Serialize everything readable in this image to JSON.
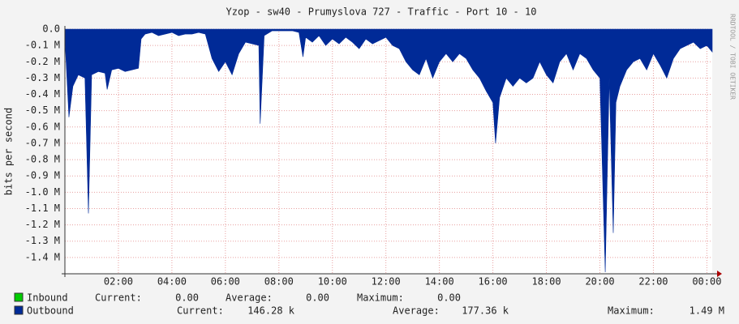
{
  "chart_data": {
    "type": "area",
    "title": "Yzop - sw40 - Prumyslova 727 - Traffic - Port 10 - 10",
    "y_label": "bits per second",
    "watermark": "RRDTOOL / TOBI OETIKER",
    "xlim": [
      0,
      24.2
    ],
    "xticks": [
      {
        "value": 2,
        "label": "02:00"
      },
      {
        "value": 4,
        "label": "04:00"
      },
      {
        "value": 6,
        "label": "06:00"
      },
      {
        "value": 8,
        "label": "08:00"
      },
      {
        "value": 10,
        "label": "10:00"
      },
      {
        "value": 12,
        "label": "12:00"
      },
      {
        "value": 14,
        "label": "14:00"
      },
      {
        "value": 16,
        "label": "16:00"
      },
      {
        "value": 18,
        "label": "18:00"
      },
      {
        "value": 20,
        "label": "20:00"
      },
      {
        "value": 22,
        "label": "22:00"
      },
      {
        "value": 24,
        "label": "00:00"
      }
    ],
    "ylim": [
      -1500000,
      0
    ],
    "yticks": [
      {
        "value": 0,
        "label": "0.0"
      },
      {
        "value": -100000,
        "label": "-0.1 M"
      },
      {
        "value": -200000,
        "label": "-0.2 M"
      },
      {
        "value": -300000,
        "label": "-0.3 M"
      },
      {
        "value": -400000,
        "label": "-0.4 M"
      },
      {
        "value": -500000,
        "label": "-0.5 M"
      },
      {
        "value": -600000,
        "label": "-0.6 M"
      },
      {
        "value": -700000,
        "label": "-0.7 M"
      },
      {
        "value": -800000,
        "label": "-0.8 M"
      },
      {
        "value": -900000,
        "label": "-0.9 M"
      },
      {
        "value": -1000000,
        "label": "-1.0 M"
      },
      {
        "value": -1100000,
        "label": "-1.1 M"
      },
      {
        "value": -1200000,
        "label": "-1.2 M"
      },
      {
        "value": -1300000,
        "label": "-1.3 M"
      },
      {
        "value": -1400000,
        "label": "-1.4 M"
      }
    ],
    "grid": true,
    "stat_labels": [
      "Current:",
      "Average:",
      "Maximum:"
    ],
    "x": [
      0,
      0.15,
      0.3,
      0.5,
      0.75,
      0.88,
      1.0,
      1.25,
      1.5,
      1.58,
      1.75,
      2.0,
      2.25,
      2.5,
      2.75,
      2.85,
      3.0,
      3.25,
      3.5,
      3.75,
      4.0,
      4.25,
      4.5,
      4.75,
      5.0,
      5.25,
      5.5,
      5.75,
      6.0,
      6.25,
      6.5,
      6.75,
      7.0,
      7.25,
      7.3,
      7.45,
      7.75,
      8.0,
      8.25,
      8.5,
      8.75,
      8.9,
      9.0,
      9.25,
      9.5,
      9.75,
      10.0,
      10.25,
      10.5,
      10.75,
      11.0,
      11.25,
      11.5,
      11.75,
      12.0,
      12.25,
      12.5,
      12.75,
      13.0,
      13.25,
      13.5,
      13.75,
      14.0,
      14.25,
      14.5,
      14.75,
      15.0,
      15.25,
      15.5,
      15.75,
      16.0,
      16.1,
      16.25,
      16.5,
      16.75,
      17.0,
      17.25,
      17.5,
      17.75,
      18.0,
      18.25,
      18.5,
      18.75,
      19.0,
      19.25,
      19.5,
      19.75,
      20.0,
      20.2,
      20.35,
      20.5,
      20.6,
      20.75,
      21.0,
      21.25,
      21.5,
      21.75,
      22.0,
      22.25,
      22.5,
      22.75,
      23.0,
      23.25,
      23.5,
      23.75,
      24.0,
      24.2
    ],
    "series": [
      {
        "name": "Inbound",
        "color": "#00cc00",
        "current": "0.00",
        "average": "0.00",
        "maximum": "0.00"
      },
      {
        "name": "Outbound",
        "color": "#002a97",
        "current": "146.28 k",
        "average": "177.36 k",
        "maximum": "1.49 M",
        "values": [
          -50000,
          -540000,
          -350000,
          -280000,
          -300000,
          -1130000,
          -280000,
          -260000,
          -270000,
          -370000,
          -250000,
          -240000,
          -260000,
          -250000,
          -240000,
          -60000,
          -30000,
          -20000,
          -40000,
          -30000,
          -20000,
          -40000,
          -30000,
          -30000,
          -20000,
          -30000,
          -180000,
          -260000,
          -200000,
          -280000,
          -150000,
          -80000,
          -90000,
          -100000,
          -580000,
          -40000,
          -10000,
          -10000,
          -10000,
          -10000,
          -20000,
          -170000,
          -50000,
          -80000,
          -40000,
          -100000,
          -60000,
          -90000,
          -50000,
          -80000,
          -120000,
          -60000,
          -90000,
          -70000,
          -50000,
          -100000,
          -120000,
          -200000,
          -250000,
          -280000,
          -180000,
          -300000,
          -200000,
          -150000,
          -200000,
          -150000,
          -180000,
          -250000,
          -300000,
          -380000,
          -450000,
          -700000,
          -420000,
          -300000,
          -350000,
          -300000,
          -330000,
          -300000,
          -200000,
          -280000,
          -330000,
          -200000,
          -150000,
          -250000,
          -150000,
          -180000,
          -250000,
          -300000,
          -1490000,
          -300000,
          -1250000,
          -450000,
          -350000,
          -250000,
          -200000,
          -180000,
          -250000,
          -150000,
          -220000,
          -300000,
          -180000,
          -120000,
          -100000,
          -80000,
          -120000,
          -100000,
          -140000
        ]
      }
    ]
  }
}
